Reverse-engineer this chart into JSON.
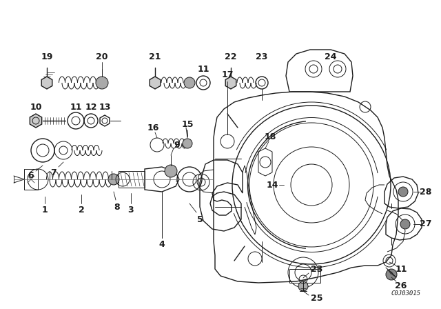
{
  "background_color": "#ffffff",
  "diagram_code": "C0J03015",
  "black": "#1a1a1a",
  "label_fontsize": 9,
  "code_fontsize": 6.5,
  "figsize": [
    6.4,
    4.48
  ],
  "dpi": 100
}
